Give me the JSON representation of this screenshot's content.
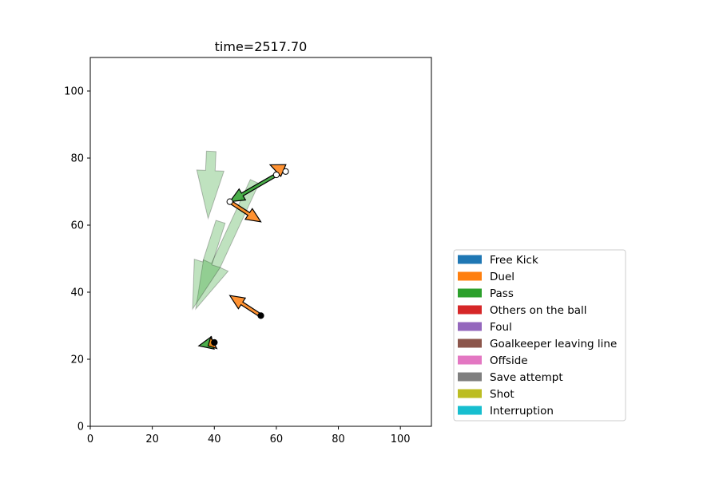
{
  "chart_data": {
    "type": "scatter",
    "title": "time=2517.70",
    "xlabel": "",
    "ylabel": "",
    "xlim": [
      0,
      110
    ],
    "ylim": [
      0,
      110
    ],
    "xticks": [
      0,
      20,
      40,
      60,
      80,
      100
    ],
    "yticks": [
      0,
      20,
      40,
      60,
      80,
      100
    ],
    "grid": false,
    "legend_position": "lower-right outside",
    "legend": [
      {
        "label": "Free Kick",
        "color": "#1f77b4"
      },
      {
        "label": "Duel",
        "color": "#ff7f0e"
      },
      {
        "label": "Pass",
        "color": "#2ca02c"
      },
      {
        "label": "Others on the ball",
        "color": "#d62728"
      },
      {
        "label": "Foul",
        "color": "#9467bd"
      },
      {
        "label": "Goalkeeper leaving line",
        "color": "#8c564b"
      },
      {
        "label": "Offside",
        "color": "#e377c2"
      },
      {
        "label": "Save attempt",
        "color": "#7f7f7f"
      },
      {
        "label": "Shot",
        "color": "#bcbd22"
      },
      {
        "label": "Interruption",
        "color": "#17becf"
      }
    ],
    "faded_arrows": [
      {
        "type": "Pass",
        "start": [
          39,
          82
        ],
        "end": [
          38,
          62
        ]
      },
      {
        "type": "Pass",
        "start": [
          53,
          73
        ],
        "end": [
          34,
          35
        ]
      },
      {
        "type": "Pass",
        "start": [
          42,
          61
        ],
        "end": [
          33,
          35
        ]
      }
    ],
    "events": [
      {
        "type": "Duel",
        "start": [
          63,
          76
        ],
        "end": [
          58,
          78
        ],
        "start_marker": "open"
      },
      {
        "type": "Pass",
        "start": [
          60,
          75
        ],
        "end": [
          45,
          67
        ],
        "start_marker": "open"
      },
      {
        "type": "Duel",
        "start": [
          45,
          67
        ],
        "end": [
          55,
          61
        ],
        "start_marker": "open"
      },
      {
        "type": "Duel",
        "start": [
          55,
          33
        ],
        "end": [
          45,
          39
        ],
        "start_marker": "filled"
      },
      {
        "type": "Pass",
        "start": [
          40,
          25
        ],
        "end": [
          35,
          24
        ],
        "start_marker": "filled"
      },
      {
        "type": "Duel",
        "start": [
          40,
          25
        ],
        "end": [
          38,
          24
        ],
        "start_marker": "filled"
      }
    ]
  }
}
